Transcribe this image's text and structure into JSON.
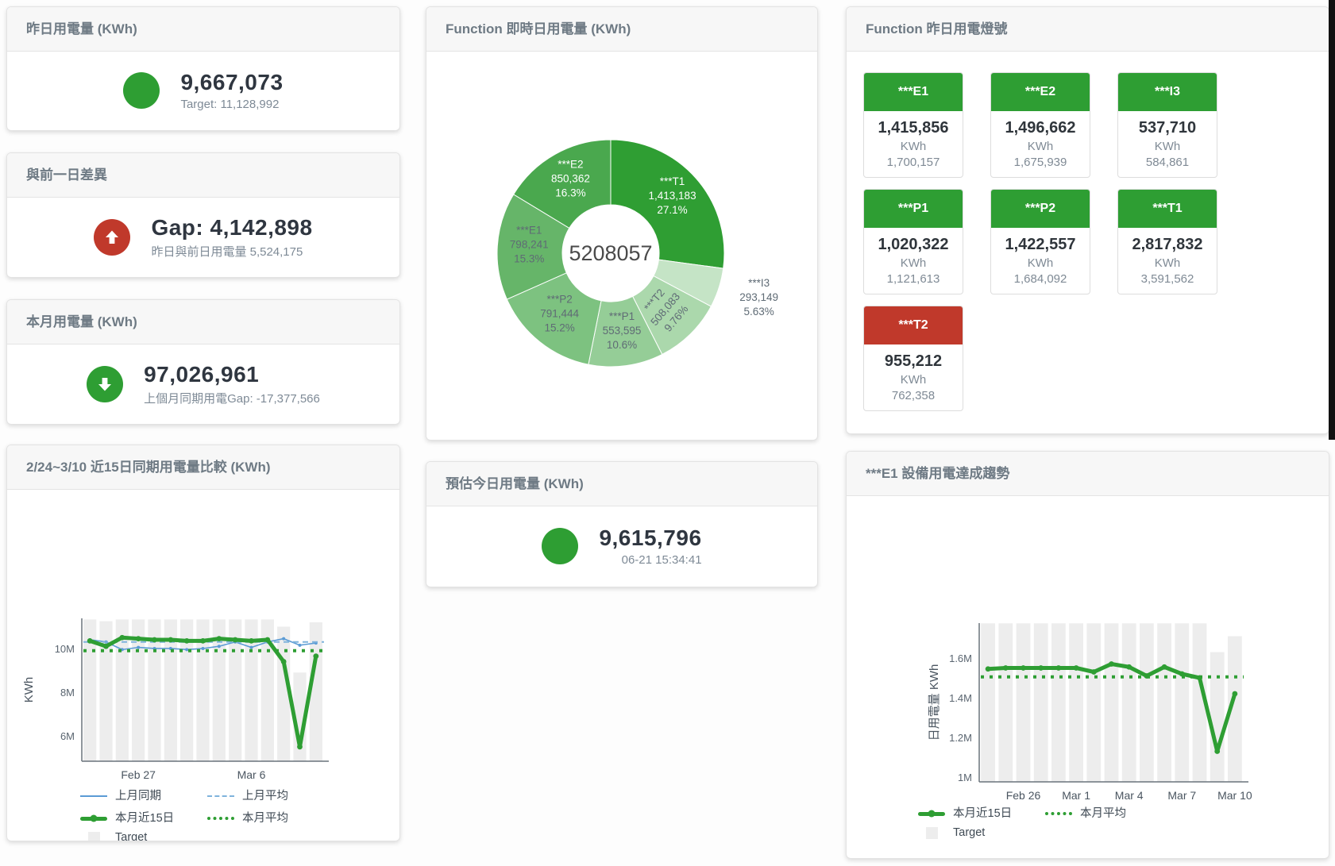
{
  "colors": {
    "green": "#2e9e33",
    "red": "#c0392b",
    "blue": "#5b9bd5",
    "blue_dash": "#7fb3dc",
    "gray_bar": "#ededed"
  },
  "cards": {
    "yesterday": {
      "title": "昨日用電量 (KWh)",
      "value": "9,667,073",
      "subtitle": "Target: 11,128,992",
      "status": "green"
    },
    "gap": {
      "title": "與前一日差異",
      "value": "Gap: 4,142,898",
      "subtitle": "昨日與前日用電量 5,524,175",
      "status": "red",
      "arrow": "up"
    },
    "month": {
      "title": "本月用電量 (KWh)",
      "value": "97,026,961",
      "subtitle": "上個月同期用電Gap: -17,377,566",
      "status": "green",
      "arrow": "down"
    },
    "estimate": {
      "title": "預估今日用電量 (KWh)",
      "value": "9,615,796",
      "subtitle": "06-21 15:34:41",
      "status": "green"
    },
    "lights": {
      "title": "Function 昨日用電燈號",
      "tiles": [
        {
          "name": "***E1",
          "value": "1,415,856",
          "unit": "KWh",
          "target": "1,700,157",
          "color": "green"
        },
        {
          "name": "***E2",
          "value": "1,496,662",
          "unit": "KWh",
          "target": "1,675,939",
          "color": "green"
        },
        {
          "name": "***I3",
          "value": "537,710",
          "unit": "KWh",
          "target": "584,861",
          "color": "green"
        },
        {
          "name": "***P1",
          "value": "1,020,322",
          "unit": "KWh",
          "target": "1,121,613",
          "color": "green"
        },
        {
          "name": "***P2",
          "value": "1,422,557",
          "unit": "KWh",
          "target": "1,684,092",
          "color": "green"
        },
        {
          "name": "***T1",
          "value": "2,817,832",
          "unit": "KWh",
          "target": "3,591,562",
          "color": "green"
        },
        {
          "name": "***T2",
          "value": "955,212",
          "unit": "KWh",
          "target": "762,358",
          "color": "red"
        }
      ]
    }
  },
  "chart_data": [
    {
      "type": "pie",
      "title": "Function 即時日用電量 (KWh)",
      "center_label": "5208057",
      "legend_position": "none",
      "slices": [
        {
          "name": "***T1",
          "value": 1413183,
          "value_label": "1,413,183",
          "pct": "27.1%",
          "color": "#2f9e33",
          "text": "#ffffff"
        },
        {
          "name": "***I3",
          "value": 293149,
          "value_label": "293,149",
          "pct": "5.63%",
          "color": "#c5e4c6",
          "text": "#5f6b75",
          "outside": true
        },
        {
          "name": "***T2",
          "value": 508083,
          "value_label": "508,083",
          "pct": "9.76%",
          "color": "#abd8ac",
          "text": "#5f6b75",
          "rotate": -50
        },
        {
          "name": "***P1",
          "value": 553595,
          "value_label": "553,595",
          "pct": "10.6%",
          "color": "#95cd97",
          "text": "#5f6b75"
        },
        {
          "name": "***P2",
          "value": 791444,
          "value_label": "791,444",
          "pct": "15.2%",
          "color": "#7dc280",
          "text": "#5f6b75"
        },
        {
          "name": "***E1",
          "value": 798241,
          "value_label": "798,241",
          "pct": "15.3%",
          "color": "#66b569",
          "text": "#5f6b75"
        },
        {
          "name": "***E2",
          "value": 850362,
          "value_label": "850,362",
          "pct": "16.3%",
          "color": "#4aa84e",
          "text": "#ffffff"
        }
      ]
    },
    {
      "type": "line",
      "title": "2/24~3/10 近15日同期用電量比較 (KWh)",
      "ylabel": "KWh",
      "ylim": [
        4.84,
        11.38
      ],
      "grid": false,
      "yticks": [
        {
          "v": 6,
          "label": "6M"
        },
        {
          "v": 8,
          "label": "8M"
        },
        {
          "v": 10,
          "label": "10M"
        }
      ],
      "xticks": [
        {
          "i": 3,
          "label": "Feb 27"
        },
        {
          "i": 10,
          "label": "Mar 6"
        }
      ],
      "target_name": "Target",
      "target_bars": [
        11.33,
        11.25,
        11.33,
        11.33,
        11.33,
        11.33,
        11.33,
        11.33,
        11.33,
        11.33,
        11.33,
        11.33,
        11.0,
        8.9,
        11.2
      ],
      "series": [
        {
          "name": "上月同期",
          "style": "blue-line",
          "values": [
            10.4,
            10.3,
            9.95,
            10.05,
            10.0,
            10.0,
            9.95,
            10.0,
            10.1,
            10.3,
            10.05,
            10.3,
            10.45,
            10.15,
            10.25
          ]
        },
        {
          "name": "上月平均",
          "style": "blue-dash",
          "constant": 10.3
        },
        {
          "name": "本月近15日",
          "style": "green-thick",
          "values": [
            10.35,
            10.1,
            10.5,
            10.45,
            10.4,
            10.4,
            10.35,
            10.35,
            10.45,
            10.4,
            10.35,
            10.4,
            9.4,
            5.5,
            9.65
          ]
        },
        {
          "name": "本月平均",
          "style": "green-dot",
          "constant": 9.9
        }
      ],
      "legend_rows": [
        [
          {
            "label": "上月同期",
            "style": "blue-line"
          },
          {
            "label": "上月平均",
            "style": "blue-dash"
          }
        ],
        [
          {
            "label": "本月近15日",
            "style": "green-thick"
          },
          {
            "label": "本月平均",
            "style": "green-dot"
          }
        ],
        [
          {
            "label": "Target",
            "style": "gray-box"
          }
        ]
      ]
    },
    {
      "type": "line",
      "title": "***E1 設備用電達成趨勢",
      "ylabel": "日用電量 KWh",
      "ylim": [
        0.976,
        1.776
      ],
      "grid": false,
      "yticks": [
        {
          "v": 1,
          "label": "1M"
        },
        {
          "v": 1.2,
          "label": "1.2M"
        },
        {
          "v": 1.4,
          "label": "1.4M"
        },
        {
          "v": 1.6,
          "label": "1.6M"
        }
      ],
      "xticks": [
        {
          "i": 2,
          "label": "Feb 26"
        },
        {
          "i": 5,
          "label": "Mar 1"
        },
        {
          "i": 8,
          "label": "Mar 4"
        },
        {
          "i": 11,
          "label": "Mar 7"
        },
        {
          "i": 14,
          "label": "Mar 10"
        }
      ],
      "target_name": "Target",
      "target_bars": [
        1.775,
        1.775,
        1.775,
        1.775,
        1.775,
        1.775,
        1.775,
        1.775,
        1.775,
        1.775,
        1.775,
        1.775,
        1.775,
        1.63,
        1.71
      ],
      "series": [
        {
          "name": "本月近15日",
          "style": "green-thick",
          "values": [
            1.545,
            1.55,
            1.55,
            1.55,
            1.55,
            1.55,
            1.53,
            1.57,
            1.555,
            1.51,
            1.555,
            1.52,
            1.5,
            1.13,
            1.42
          ]
        },
        {
          "name": "本月平均",
          "style": "green-dot",
          "constant": 1.505
        }
      ],
      "legend_rows": [
        [
          {
            "label": "本月近15日",
            "style": "green-thick"
          },
          {
            "label": "本月平均",
            "style": "green-dot"
          }
        ],
        [
          {
            "label": "Target",
            "style": "gray-box"
          }
        ]
      ]
    }
  ]
}
